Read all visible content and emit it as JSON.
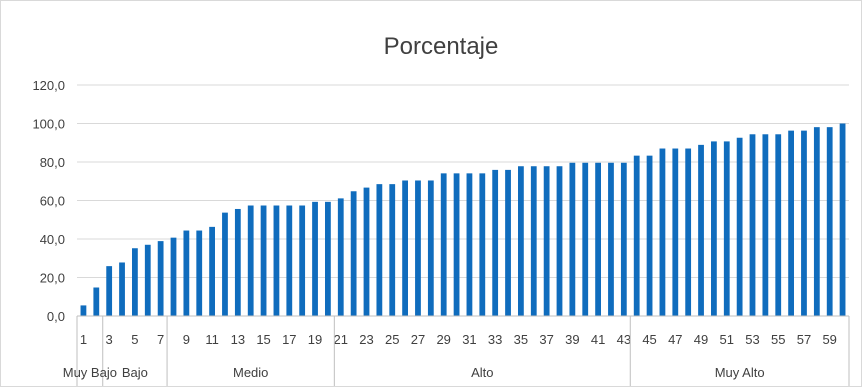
{
  "chart_data": {
    "type": "bar",
    "title": "Porcentaje",
    "xlabel": "",
    "ylabel": "",
    "ylim": [
      0,
      120
    ],
    "yticks": [
      "0,0",
      "20,0",
      "40,0",
      "60,0",
      "80,0",
      "100,0",
      "120,0"
    ],
    "ytick_values": [
      0,
      20,
      40,
      60,
      80,
      100,
      120
    ],
    "grid": true,
    "legend": "none",
    "bar_color": "#0F6CBD",
    "categories": [
      1,
      2,
      3,
      4,
      5,
      6,
      7,
      8,
      9,
      10,
      11,
      12,
      13,
      14,
      15,
      16,
      17,
      18,
      19,
      20,
      21,
      22,
      23,
      24,
      25,
      26,
      27,
      28,
      29,
      30,
      31,
      32,
      33,
      34,
      35,
      36,
      37,
      38,
      39,
      40,
      41,
      42,
      43,
      44,
      45,
      46,
      47,
      48,
      49,
      50,
      51,
      52,
      53,
      54,
      55,
      56,
      57,
      58,
      59,
      60
    ],
    "x_tick_labels_shown": [
      1,
      3,
      5,
      7,
      9,
      11,
      13,
      15,
      17,
      19,
      21,
      23,
      25,
      27,
      29,
      31,
      33,
      35,
      37,
      39,
      41,
      43,
      45,
      47,
      49,
      51,
      53,
      55,
      57,
      59
    ],
    "values": [
      5.5,
      14.8,
      25.9,
      27.8,
      35.2,
      37.0,
      38.9,
      40.7,
      44.4,
      44.4,
      46.3,
      53.7,
      55.6,
      57.4,
      57.4,
      57.4,
      57.4,
      57.4,
      59.3,
      59.3,
      61.1,
      64.8,
      66.7,
      68.5,
      68.5,
      70.4,
      70.4,
      70.4,
      74.1,
      74.1,
      74.1,
      74.1,
      75.9,
      75.9,
      77.8,
      77.8,
      77.8,
      77.8,
      79.6,
      79.6,
      79.6,
      79.6,
      79.6,
      83.3,
      83.3,
      87.0,
      87.0,
      87.0,
      88.9,
      90.7,
      90.7,
      92.6,
      94.4,
      94.4,
      94.4,
      96.3,
      96.3,
      98.1,
      98.1,
      100.0
    ],
    "groups": [
      {
        "label": "Muy Bajo",
        "start": 1,
        "end": 2
      },
      {
        "label": "Bajo",
        "start": 3,
        "end": 7
      },
      {
        "label": "Medio",
        "start": 8,
        "end": 20
      },
      {
        "label": "Alto",
        "start": 21,
        "end": 43
      },
      {
        "label": "Muy Alto",
        "start": 44,
        "end": 60
      }
    ]
  }
}
